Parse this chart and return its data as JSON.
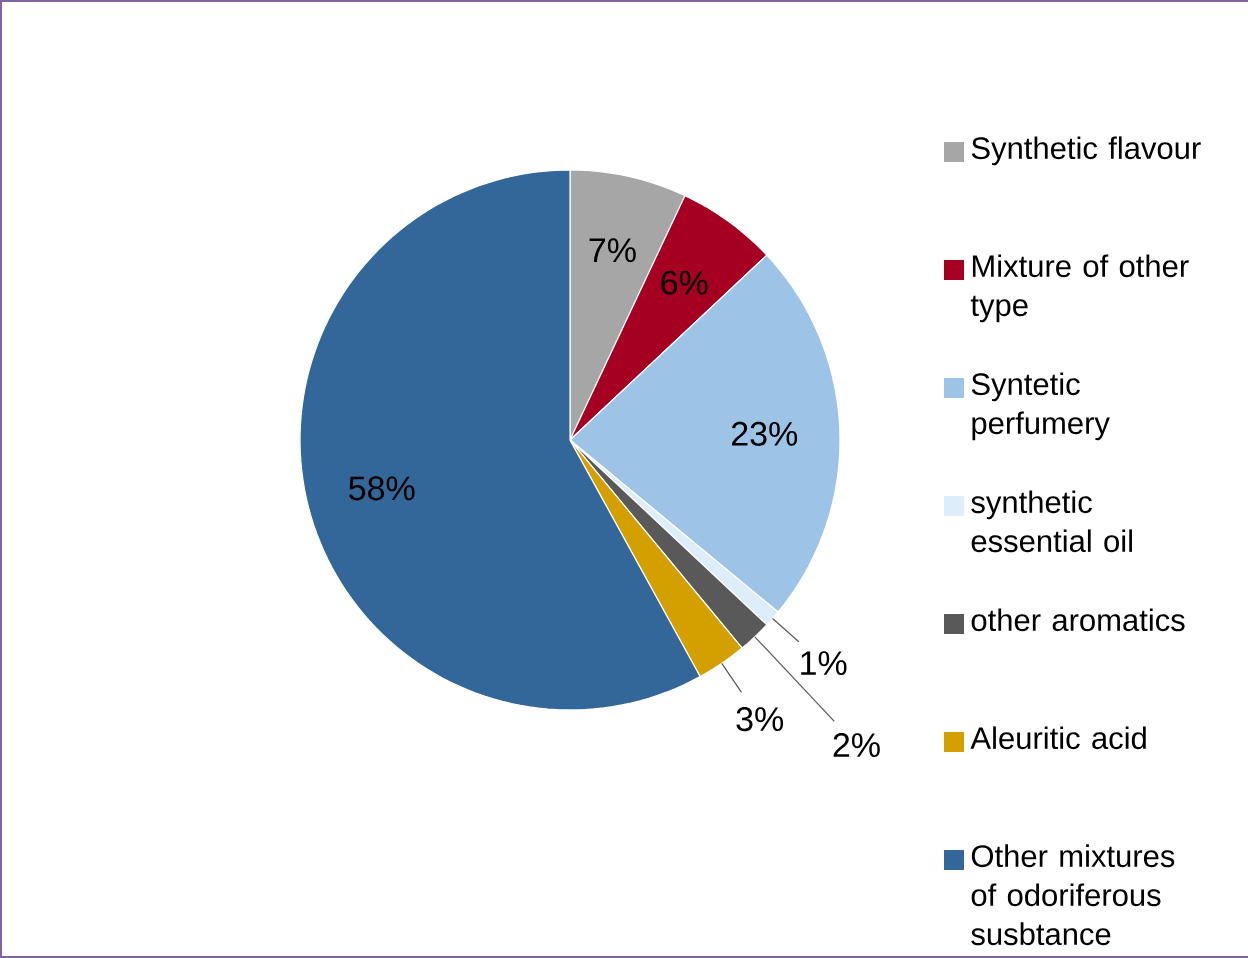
{
  "chart_data": {
    "type": "pie",
    "categories": [
      "Synthetic flavour",
      "Mixture of other type",
      "Syntetic perfumery",
      "synthetic essential oil",
      "other aromatics",
      "Aleuritic acid",
      "Other mixtures of odoriferous susbtance"
    ],
    "values": [
      7,
      6,
      23,
      1,
      2,
      3,
      58
    ],
    "colors": [
      "#a6a6a6",
      "#a50021",
      "#9dc3e6",
      "#ddeefa",
      "#595959",
      "#d4a000",
      "#336699"
    ],
    "value_labels": [
      "7%",
      "6%",
      "23%",
      "1%",
      "2%",
      "3%",
      "58%"
    ],
    "legend": "right"
  }
}
